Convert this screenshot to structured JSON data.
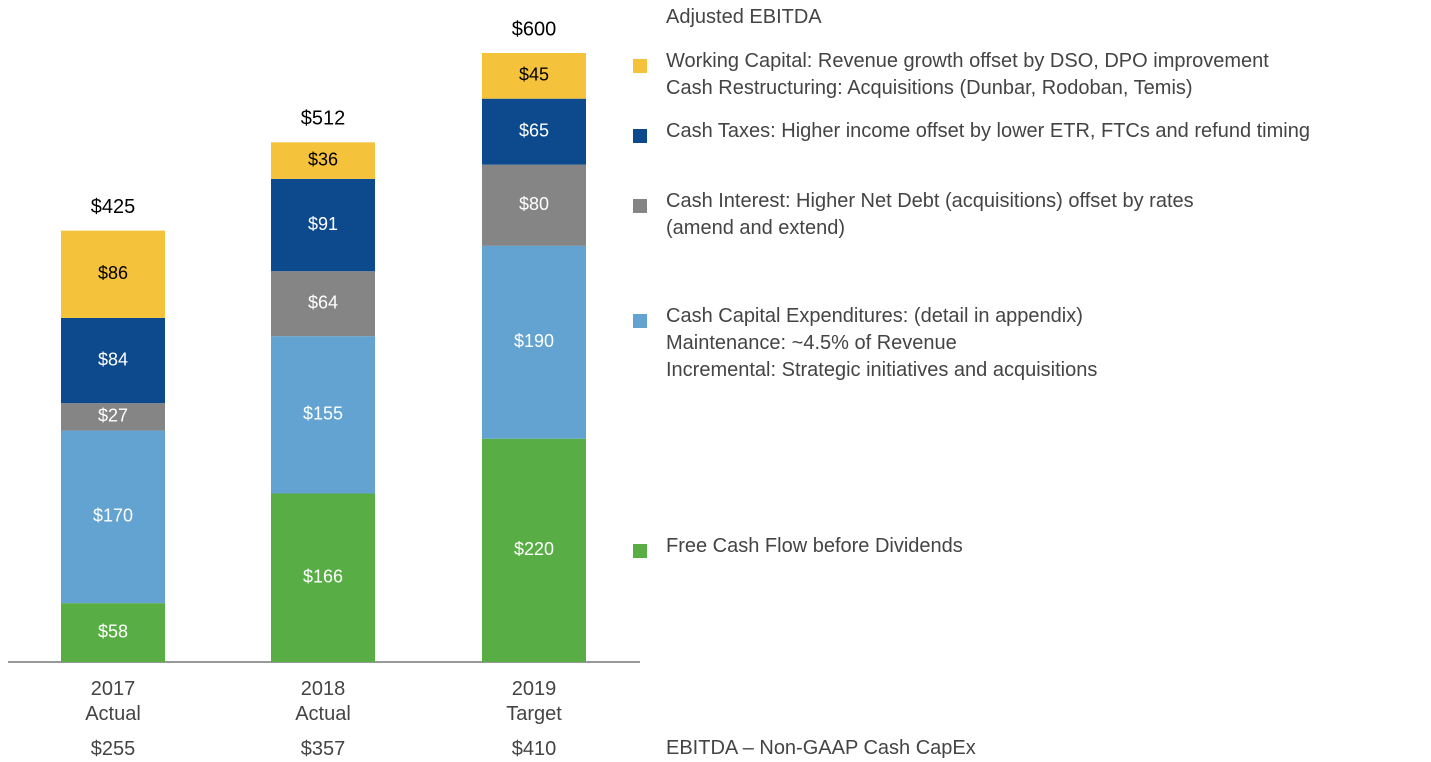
{
  "chart_data": {
    "type": "stacked_bar",
    "legend_title": "Adjusted EBITDA",
    "categories": [
      "2017\nActual",
      "2018\nActual",
      "2019\nTarget"
    ],
    "ylim": [
      0,
      600
    ],
    "series": [
      {
        "name": "Free Cash Flow before Dividends",
        "color": "#58ae45",
        "label_color": "#ffffff",
        "values": [
          58,
          166,
          220
        ],
        "value_labels": [
          "$58",
          "$166",
          "$220"
        ]
      },
      {
        "name": "Cash Capital Expenditures: (detail in appendix)\nMaintenance: ~4.5% of Revenue\nIncremental: Strategic initiatives and acquisitions",
        "color": "#62a3d1",
        "label_color": "#ffffff",
        "values": [
          170,
          155,
          190
        ],
        "value_labels": [
          "$170",
          "$155",
          "$190"
        ]
      },
      {
        "name": "Cash Interest:  Higher Net Debt (acquisitions) offset by rates\n(amend and extend)",
        "color": "#858585",
        "label_color": "#ffffff",
        "values": [
          27,
          64,
          80
        ],
        "value_labels": [
          "$27",
          "$64",
          "$80"
        ]
      },
      {
        "name": "Cash Taxes: Higher income offset by lower ETR, FTCs and refund timing",
        "color": "#0d4a8d",
        "label_color": "#ffffff",
        "values": [
          84,
          91,
          65
        ],
        "value_labels": [
          "$84",
          "$91",
          "$65"
        ]
      },
      {
        "name": "Working Capital: Revenue growth offset by DSO, DPO improvement\nCash Restructuring: Acquisitions (Dunbar, Rodoban, Temis)",
        "color": "#f5c23b",
        "label_color": "#000000",
        "values": [
          86,
          36,
          45
        ],
        "value_labels": [
          "$86",
          "$36",
          "$45"
        ]
      }
    ],
    "totals": [
      425,
      512,
      600
    ],
    "total_labels": [
      "$425",
      "$512",
      "$600"
    ],
    "footer_row": {
      "label": "EBITDA – Non-GAAP Cash CapEx",
      "values": [
        255,
        357,
        410
      ],
      "value_labels": [
        "$255",
        "$357",
        "$410"
      ]
    }
  }
}
